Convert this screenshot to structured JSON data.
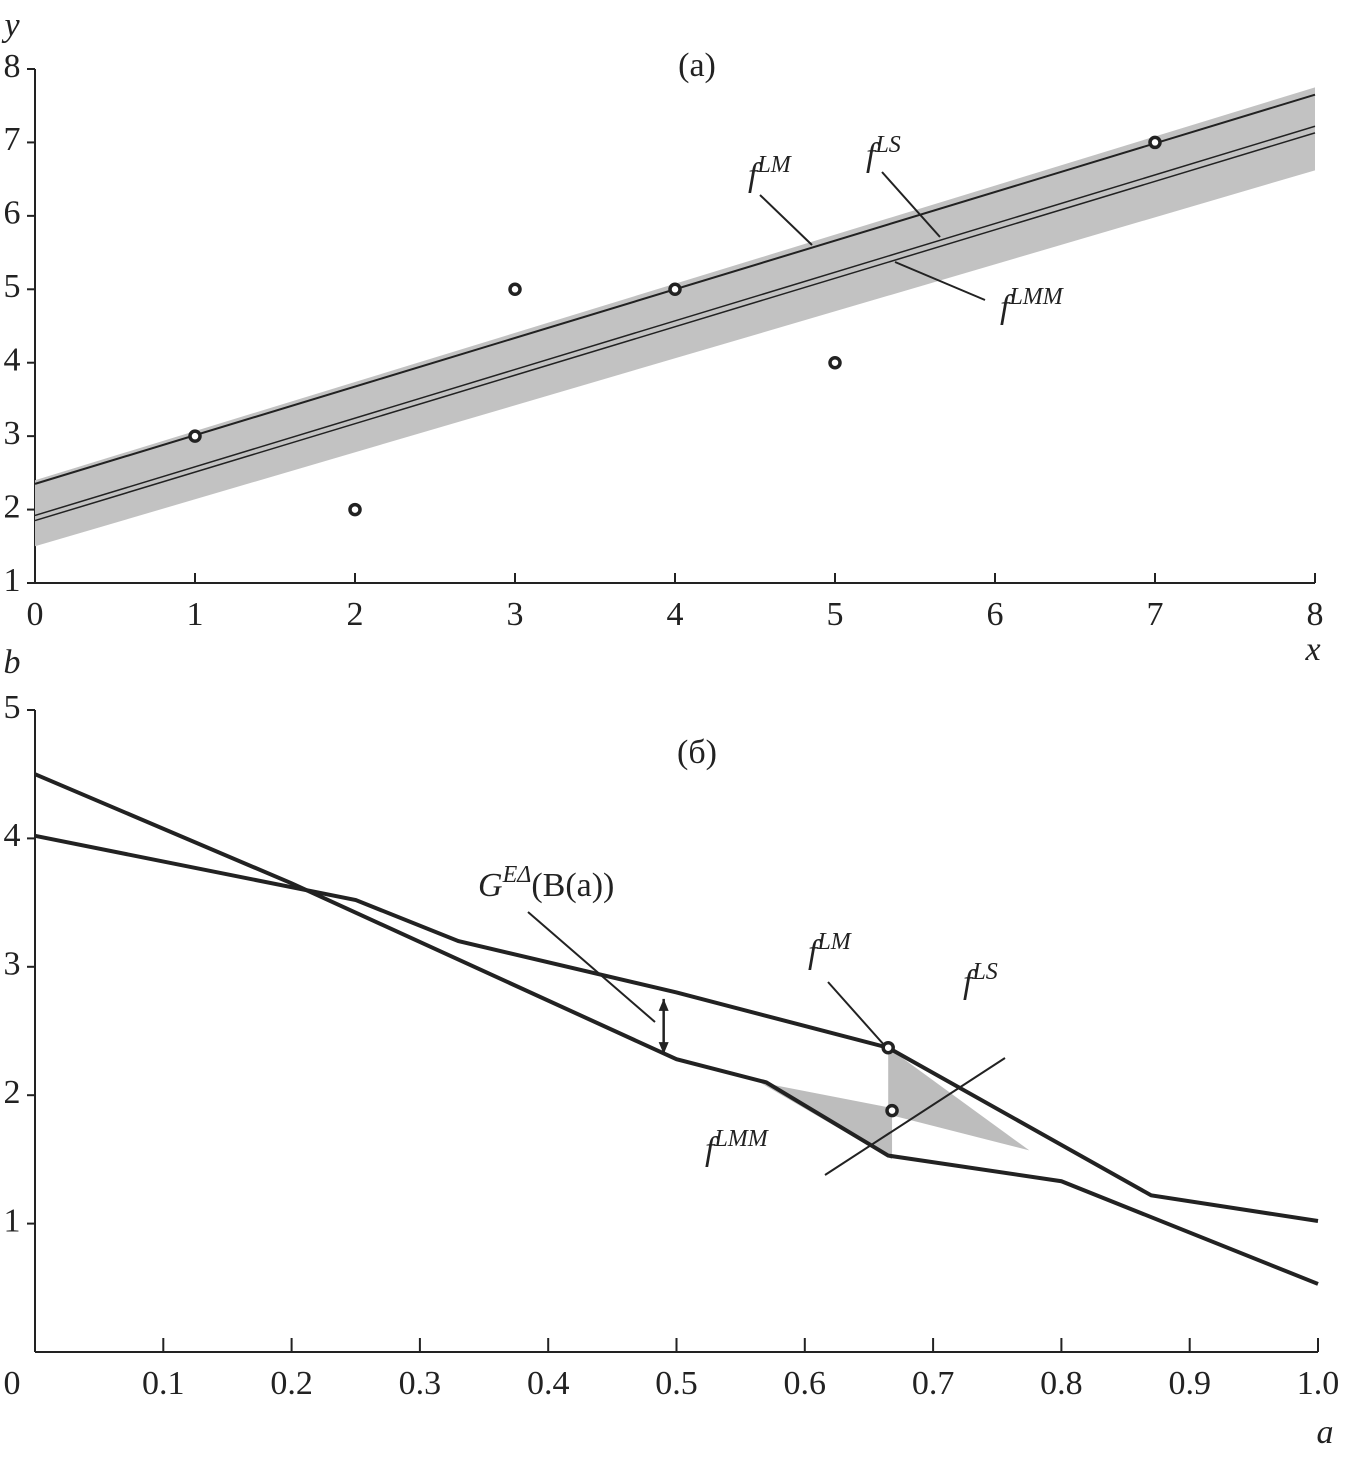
{
  "chart_data": [
    {
      "type": "scatter",
      "title": "(a)",
      "x_label": "x",
      "y_label": "y",
      "xlim": [
        0,
        8
      ],
      "ylim": [
        1,
        8
      ],
      "xticks": [
        0,
        1,
        2,
        3,
        4,
        5,
        6,
        7,
        8
      ],
      "yticks": [
        1,
        2,
        3,
        4,
        5,
        6,
        7,
        8
      ],
      "points": {
        "x": [
          1,
          2,
          3,
          4,
          5,
          7
        ],
        "y": [
          3,
          2,
          5,
          5,
          4,
          7
        ]
      },
      "band": {
        "x": [
          0,
          8
        ],
        "lower": [
          1.5,
          6.62
        ],
        "upper": [
          2.4,
          7.75
        ],
        "color": "#c2c2c2"
      },
      "lines": [
        {
          "text": "f",
          "sup": "LM",
          "x": [
            0,
            8
          ],
          "y": [
            2.35,
            7.65
          ]
        },
        {
          "text": "f",
          "sup": "LS",
          "x": [
            0,
            8
          ],
          "y": [
            1.92,
            7.22
          ]
        },
        {
          "text": "f",
          "sup": "LMM",
          "x": [
            0,
            8
          ],
          "y": [
            1.85,
            7.13
          ]
        }
      ],
      "color": "#222222"
    },
    {
      "type": "line",
      "title": "(б)",
      "x_label": "a",
      "y_label": "b",
      "xlim": [
        0,
        1
      ],
      "ylim": [
        0,
        5
      ],
      "xticks": [
        0,
        0.1,
        0.2,
        0.3,
        0.4,
        0.5,
        0.6,
        0.7,
        0.8,
        0.9,
        {
          "value": 1,
          "label": "1.0"
        }
      ],
      "yticks": [
        1,
        2,
        3,
        4,
        5
      ],
      "series": [
        {
          "x": [
            0,
            0.25,
            0.33,
            0.5,
            0.665,
            0.87,
            1.0
          ],
          "values": [
            4.02,
            3.52,
            3.2,
            2.8,
            2.37,
            1.22,
            1.02
          ]
        },
        {
          "x": [
            0,
            0.2,
            0.5,
            0.57,
            0.665,
            0.8,
            1.0
          ],
          "values": [
            4.5,
            3.65,
            2.28,
            2.1,
            1.53,
            1.33,
            0.53
          ]
        }
      ],
      "regions": [
        {
          "x": [
            0.565,
            0.668,
            0.668
          ],
          "y": [
            2.1,
            1.9,
            1.5
          ]
        },
        {
          "x": [
            0.665,
            0.665,
            0.775
          ],
          "y": [
            2.37,
            1.85,
            1.57
          ]
        }
      ],
      "points": {
        "x": [
          0.665,
          0.668
        ],
        "y": [
          2.37,
          1.88
        ]
      },
      "arrow": {
        "x": 0.49,
        "y": [
          2.32,
          2.75
        ]
      },
      "annotations": [
        {
          "text": "G",
          "sup": "EΔ",
          "after": "(B(a))"
        },
        {
          "text": "f",
          "sup": "LM"
        },
        {
          "text": "f",
          "sup": "LS"
        },
        {
          "text": "f",
          "sup": "LMM"
        }
      ],
      "color": "#222222",
      "region_color": "#bdbdbd"
    }
  ]
}
